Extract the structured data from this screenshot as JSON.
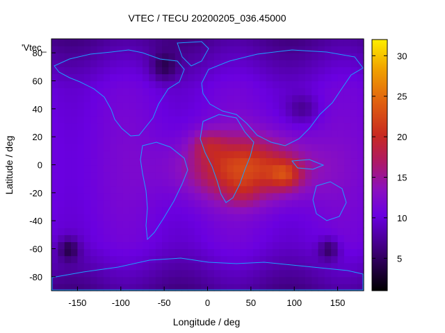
{
  "chart_data": {
    "type": "heatmap",
    "title": "VTEC / TECU 20200205_036.45000",
    "xlabel": "Longitude / deg",
    "ylabel": "Latitude / deg",
    "xlim": [
      -180,
      180
    ],
    "ylim": [
      -90,
      90
    ],
    "x_ticks": [
      -150,
      -100,
      -50,
      0,
      50,
      100,
      150
    ],
    "y_ticks": [
      -80,
      -60,
      -40,
      -20,
      0,
      20,
      40,
      60,
      80
    ],
    "colorbar": {
      "range": [
        1,
        32
      ],
      "ticks": [
        5,
        10,
        15,
        20,
        25,
        30
      ],
      "colormap": "black-purple-red-orange-yellow"
    },
    "legend_label": "'Vtec_",
    "peaks": [
      {
        "lon": 0,
        "lat": 15,
        "value": 22
      },
      {
        "lon": 90,
        "lat": -7,
        "value": 24
      },
      {
        "lon": 40,
        "lat": -20,
        "value": 20
      }
    ],
    "coastline_color": "#00a0ff"
  }
}
